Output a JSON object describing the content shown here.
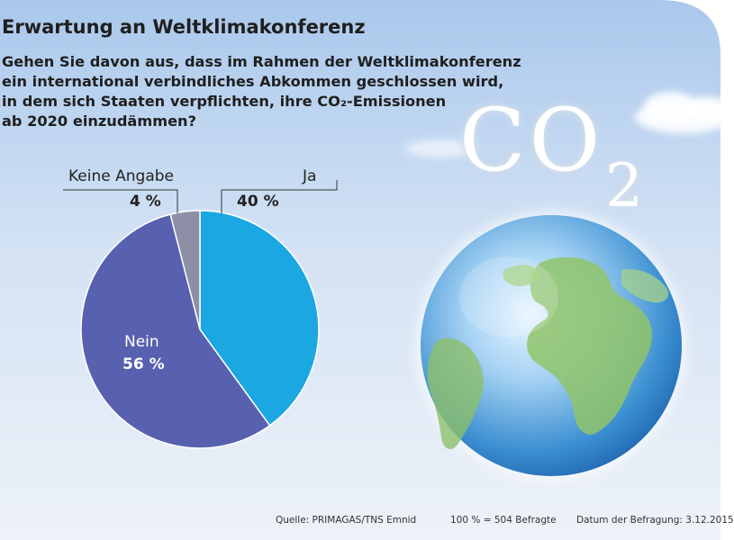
{
  "title": "Erwartung an Weltklimakonferenz",
  "question": [
    "Gehen Sie davon aus, dass im Rahmen der Weltklimakonferenz",
    "ein international verbindliches Abkommen geschlossen wird,",
    "in dem sich Staaten verpflichten, ihre CO₂-Emissionen",
    "ab 2020 einzudämmen?"
  ],
  "illustration": {
    "co2_main": "CO",
    "co2_sub": "2",
    "globe": "earth-globe-icon"
  },
  "colors": {
    "ja": "#1ba7e1",
    "nein": "#5761b0",
    "keine_angabe": "#8c8fa5",
    "background": "#c4d9f2"
  },
  "chart_data": {
    "type": "pie",
    "title": "Erwartung an Weltklimakonferenz",
    "slices": [
      {
        "label": "Ja",
        "value": 40,
        "value_label": "40 %"
      },
      {
        "label": "Nein",
        "value": 56,
        "value_label": "56 %"
      },
      {
        "label": "Keine Angabe",
        "value": 4,
        "value_label": "4 %"
      }
    ],
    "unit": "%"
  },
  "footer": {
    "source": "Quelle: PRIMAGAS/TNS Emnid",
    "base": "100 % = 504 Befragte",
    "date": "Datum der Befragung: 3.12.2015"
  }
}
